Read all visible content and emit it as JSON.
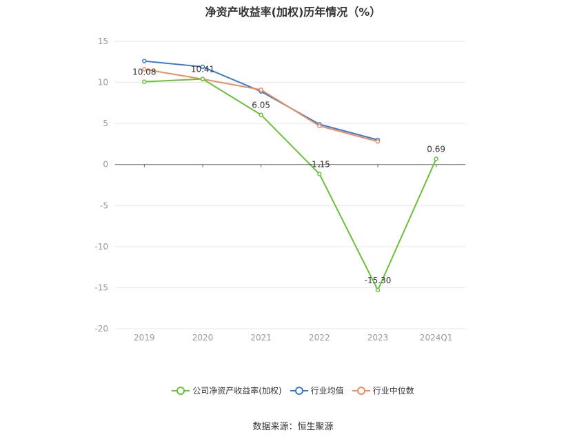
{
  "chart_data": {
    "type": "line",
    "title": "净资产收益率(加权)历年情况（%）",
    "categories": [
      "2019",
      "2020",
      "2021",
      "2022",
      "2023",
      "2024Q1"
    ],
    "ylim": [
      -20,
      15
    ],
    "yticks": [
      "15",
      "10",
      "5",
      "0",
      "-5",
      "-10",
      "-15",
      "-20"
    ],
    "grid": true,
    "legend_position": "bottom",
    "series": [
      {
        "name": "公司净资产收益率(加权)",
        "color": "#67c23a",
        "values": [
          10.08,
          10.41,
          6.05,
          -1.15,
          -15.3,
          0.69
        ],
        "labels": [
          "10.08",
          "10.41",
          "6.05",
          "-1.15",
          "-15.30",
          "0.69"
        ]
      },
      {
        "name": "行业均值",
        "color": "#3a78d6",
        "values": [
          12.6,
          11.9,
          8.9,
          4.9,
          3.0,
          null
        ]
      },
      {
        "name": "行业中位数",
        "color": "#ef8b5c",
        "values": [
          11.6,
          10.4,
          9.1,
          4.7,
          2.8,
          null
        ]
      }
    ]
  },
  "source": "数据来源：恒生聚源"
}
